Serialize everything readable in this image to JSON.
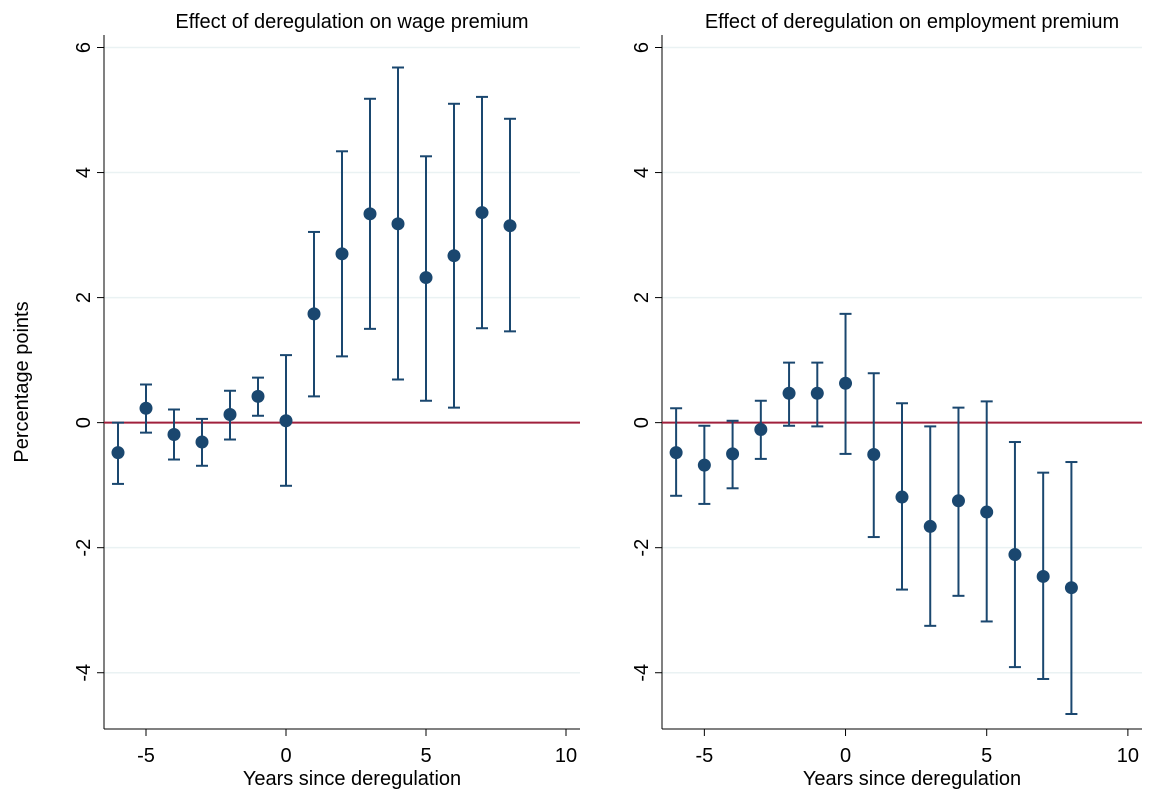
{
  "chart_data": [
    {
      "type": "errorbar",
      "title": "Effect of deregulation on wage premium",
      "xlabel": "Years since deregulation",
      "ylabel": "Percentage points",
      "x": [
        -6,
        -5,
        -4,
        -3,
        -2,
        -1,
        0,
        1,
        2,
        3,
        4,
        5,
        6,
        7,
        8
      ],
      "series": [
        {
          "color": "#1a476f",
          "values": [
            -0.48,
            0.23,
            -0.19,
            -0.31,
            0.13,
            0.42,
            0.03,
            1.74,
            2.7,
            3.34,
            3.18,
            2.32,
            2.67,
            3.36,
            3.15
          ],
          "lower": [
            -0.98,
            -0.16,
            -0.59,
            -0.69,
            -0.27,
            0.11,
            -1.01,
            0.42,
            1.06,
            1.5,
            0.69,
            0.35,
            0.24,
            1.51,
            1.46
          ],
          "upper": [
            0,
            0.61,
            0.21,
            0.06,
            0.51,
            0.72,
            1.08,
            3.05,
            4.34,
            5.18,
            5.68,
            4.26,
            5.1,
            5.21,
            4.86
          ]
        }
      ],
      "reference_line": 0,
      "reference_color": "#a0203c",
      "xlim": [
        -6.5,
        10.5
      ],
      "xticks": [
        -5,
        0,
        5,
        10
      ],
      "ylim": [
        -4.9,
        6.2
      ],
      "yticks": [
        -4,
        -2,
        0,
        2,
        4,
        6
      ],
      "grid": true
    },
    {
      "type": "errorbar",
      "title": "Effect of deregulation on employment premium",
      "xlabel": "Years since deregulation",
      "x": [
        -6,
        -5,
        -4,
        -3,
        -2,
        -1,
        0,
        1,
        2,
        3,
        4,
        5,
        6,
        7,
        8
      ],
      "series": [
        {
          "color": "#1a476f",
          "values": [
            -0.48,
            -0.68,
            -0.5,
            -0.11,
            0.47,
            0.47,
            0.63,
            -0.51,
            -1.19,
            -1.66,
            -1.25,
            -1.43,
            -2.11,
            -2.46,
            -2.64
          ],
          "lower": [
            -1.17,
            -1.3,
            -1.05,
            -0.58,
            -0.05,
            -0.06,
            -0.5,
            -1.83,
            -2.67,
            -3.25,
            -2.77,
            -3.18,
            -3.91,
            -4.1,
            -4.66
          ],
          "upper": [
            0.23,
            -0.05,
            0.03,
            0.35,
            0.96,
            0.96,
            1.74,
            0.79,
            0.31,
            -0.06,
            0.24,
            0.34,
            -0.31,
            -0.8,
            -0.63
          ]
        }
      ],
      "reference_line": 0,
      "reference_color": "#a0203c",
      "xlim": [
        -6.5,
        10.5
      ],
      "xticks": [
        -5,
        0,
        5,
        10
      ],
      "ylim": [
        -4.9,
        6.2
      ],
      "yticks": [
        -4,
        -2,
        0,
        2,
        4,
        6
      ],
      "grid": true
    }
  ]
}
